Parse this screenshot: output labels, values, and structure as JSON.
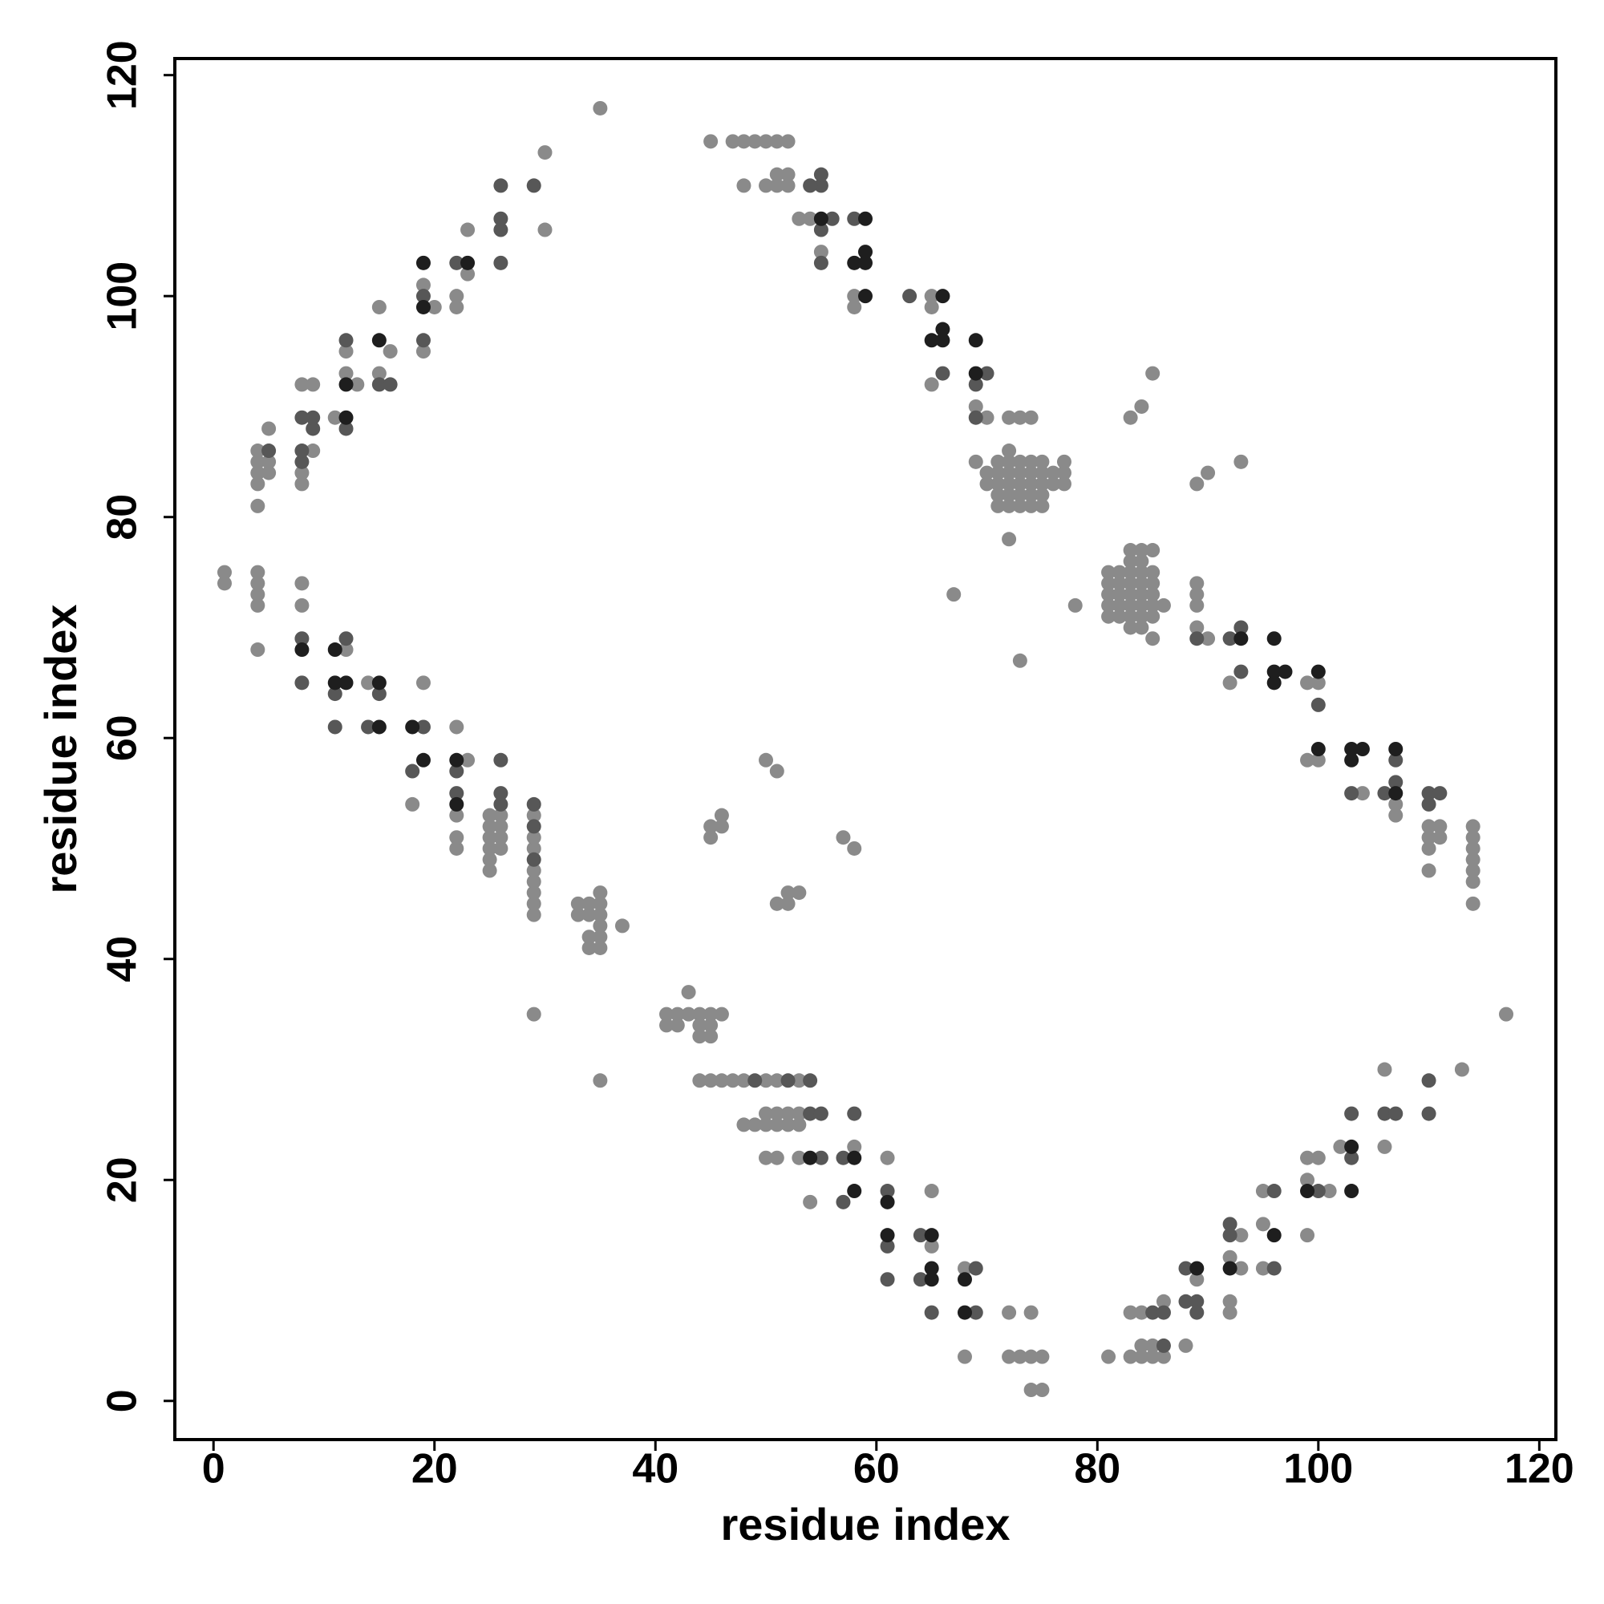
{
  "chart_data": {
    "type": "scatter",
    "x_label": "residue index",
    "y_label": "residue index",
    "xlim": [
      -3.5,
      121.5
    ],
    "ylim": [
      -3.5,
      121.5
    ],
    "xticks": [
      0,
      20,
      40,
      60,
      80,
      100,
      120
    ],
    "yticks": [
      0,
      20,
      40,
      60,
      80,
      100,
      120
    ],
    "grid": false,
    "series": [
      {
        "color": "#8a8a8a",
        "x": [
          44,
          45,
          46,
          47,
          48,
          50,
          51,
          53,
          50,
          51,
          52,
          53,
          48,
          49,
          50,
          51,
          52,
          53,
          50,
          51,
          53,
          54,
          61,
          58,
          65,
          65,
          68,
          68,
          72,
          74,
          72,
          73,
          74,
          75,
          74,
          75,
          81,
          83,
          84,
          85,
          86,
          83,
          84,
          86,
          85,
          84,
          88,
          89,
          92,
          92,
          92,
          93,
          93,
          95,
          95,
          95,
          99,
          99,
          99,
          100,
          101,
          102,
          106,
          113,
          117,
          106,
          41,
          42,
          41,
          42,
          43,
          44,
          45,
          46,
          43,
          44,
          45,
          44,
          45,
          51,
          52,
          53,
          52,
          57,
          58,
          35,
          73,
          78,
          89,
          90,
          93,
          89,
          89,
          89,
          89,
          90,
          92,
          99,
          99,
          100,
          100,
          104,
          107,
          107,
          110,
          110,
          110,
          110,
          111,
          111,
          114,
          114,
          114,
          114,
          114,
          114,
          114,
          81,
          81,
          81,
          81,
          81,
          82,
          82,
          82,
          82,
          82,
          83,
          83,
          83,
          83,
          83,
          84,
          84,
          84,
          84,
          84,
          85,
          85,
          85,
          85,
          85,
          83,
          84,
          85,
          83,
          84,
          83,
          84,
          85,
          86,
          29,
          29,
          29,
          29,
          29,
          29,
          29,
          29,
          26,
          26,
          26,
          26,
          25,
          25,
          25,
          25,
          25,
          25,
          22,
          22,
          22,
          18,
          22,
          23,
          19,
          14,
          12,
          4,
          8,
          8,
          4,
          4,
          4,
          4,
          1,
          1,
          4,
          4,
          4,
          4,
          4,
          8,
          8,
          9,
          5,
          5,
          5,
          11,
          9,
          8,
          13,
          15,
          12,
          12,
          19,
          16,
          20,
          22,
          15,
          22,
          19,
          23,
          30,
          30,
          35,
          23,
          34,
          34,
          35,
          35,
          35,
          35,
          35,
          35,
          37,
          34,
          34,
          33,
          33,
          45,
          45,
          46,
          46,
          51,
          50,
          29,
          67,
          72,
          83,
          84,
          85,
          74,
          73,
          72,
          70,
          69,
          65,
          65,
          58,
          65,
          58,
          55,
          53,
          54,
          48,
          50,
          51,
          52,
          51,
          52,
          45,
          47,
          48,
          49,
          50,
          51,
          52,
          71,
          72,
          73,
          74,
          75,
          71,
          72,
          73,
          74,
          75,
          71,
          72,
          73,
          74,
          75,
          71,
          72,
          73,
          74,
          75,
          71,
          72,
          73,
          74,
          75,
          77,
          77,
          77,
          76,
          76,
          70,
          70,
          69,
          72
        ],
        "values": [
          29,
          29,
          29,
          29,
          29,
          29,
          29,
          29,
          26,
          26,
          26,
          26,
          25,
          25,
          25,
          25,
          25,
          25,
          22,
          22,
          22,
          18,
          22,
          23,
          19,
          14,
          12,
          4,
          8,
          8,
          4,
          4,
          4,
          4,
          1,
          1,
          4,
          4,
          4,
          4,
          4,
          8,
          8,
          9,
          5,
          5,
          5,
          11,
          9,
          8,
          13,
          15,
          12,
          12,
          19,
          16,
          20,
          22,
          15,
          22,
          19,
          23,
          30,
          30,
          35,
          23,
          34,
          34,
          35,
          35,
          35,
          35,
          35,
          35,
          37,
          34,
          34,
          33,
          33,
          45,
          45,
          46,
          46,
          51,
          50,
          29,
          67,
          72,
          83,
          84,
          85,
          74,
          73,
          72,
          70,
          69,
          65,
          65,
          58,
          65,
          58,
          55,
          53,
          54,
          48,
          50,
          51,
          52,
          51,
          52,
          45,
          47,
          48,
          49,
          50,
          51,
          52,
          71,
          72,
          73,
          74,
          75,
          71,
          72,
          73,
          74,
          75,
          71,
          72,
          73,
          74,
          75,
          71,
          72,
          73,
          74,
          75,
          71,
          72,
          73,
          74,
          75,
          77,
          77,
          77,
          76,
          76,
          70,
          70,
          69,
          72,
          44,
          45,
          46,
          47,
          48,
          50,
          51,
          53,
          50,
          51,
          52,
          53,
          48,
          49,
          50,
          51,
          52,
          53,
          50,
          51,
          53,
          54,
          61,
          58,
          65,
          65,
          68,
          68,
          72,
          74,
          72,
          73,
          74,
          75,
          74,
          75,
          81,
          83,
          84,
          85,
          86,
          83,
          84,
          86,
          85,
          84,
          88,
          89,
          92,
          92,
          92,
          93,
          93,
          95,
          95,
          95,
          99,
          99,
          99,
          100,
          101,
          102,
          106,
          113,
          117,
          106,
          41,
          42,
          41,
          42,
          43,
          44,
          45,
          46,
          43,
          44,
          45,
          44,
          45,
          51,
          52,
          53,
          52,
          57,
          58,
          35,
          73,
          78,
          89,
          90,
          93,
          89,
          89,
          89,
          89,
          90,
          92,
          99,
          99,
          100,
          100,
          104,
          107,
          107,
          110,
          110,
          110,
          110,
          111,
          111,
          114,
          114,
          114,
          114,
          114,
          114,
          114,
          81,
          81,
          81,
          81,
          81,
          82,
          82,
          82,
          82,
          82,
          83,
          83,
          83,
          83,
          83,
          84,
          84,
          84,
          84,
          84,
          85,
          85,
          85,
          85,
          85,
          83,
          84,
          85,
          83,
          84,
          83,
          84,
          85,
          86
        ]
      },
      {
        "color": "#575757",
        "x": [
          49,
          52,
          54,
          54,
          55,
          55,
          57,
          58,
          57,
          61,
          61,
          61,
          64,
          64,
          65,
          69,
          69,
          85,
          86,
          86,
          88,
          88,
          89,
          89,
          92,
          92,
          96,
          96,
          100,
          103,
          103,
          106,
          107,
          110,
          110,
          89,
          92,
          93,
          93,
          100,
          103,
          107,
          107,
          110,
          110,
          111,
          106,
          29,
          29,
          29,
          26,
          26,
          22,
          22,
          26,
          18,
          19,
          14,
          11,
          15,
          11,
          8,
          12,
          8,
          8,
          5,
          8,
          12,
          9,
          9,
          8,
          15,
          16,
          12,
          19,
          19,
          22,
          26,
          26,
          26,
          26,
          29,
          69,
          69,
          66,
          70,
          63,
          55,
          58,
          56,
          55,
          54,
          55,
          55
        ],
        "values": [
          29,
          29,
          29,
          26,
          26,
          22,
          22,
          26,
          18,
          19,
          14,
          11,
          15,
          11,
          8,
          12,
          8,
          8,
          5,
          8,
          12,
          9,
          9,
          8,
          15,
          16,
          12,
          19,
          19,
          22,
          26,
          26,
          26,
          26,
          29,
          69,
          69,
          66,
          70,
          63,
          55,
          58,
          56,
          55,
          54,
          55,
          55,
          49,
          52,
          54,
          54,
          55,
          55,
          57,
          58,
          57,
          61,
          61,
          61,
          64,
          64,
          65,
          69,
          69,
          85,
          86,
          86,
          88,
          88,
          89,
          89,
          92,
          92,
          96,
          96,
          100,
          103,
          103,
          106,
          107,
          110,
          110,
          89,
          92,
          93,
          93,
          100,
          103,
          107,
          107,
          110,
          110,
          111,
          106
        ]
      },
      {
        "color": "#1e1e1e",
        "x": [
          54,
          58,
          58,
          61,
          61,
          65,
          65,
          65,
          68,
          68,
          89,
          92,
          96,
          99,
          103,
          103,
          93,
          96,
          96,
          97,
          96,
          100,
          100,
          103,
          103,
          104,
          107,
          107,
          22,
          22,
          19,
          18,
          15,
          15,
          12,
          11,
          11,
          8,
          12,
          12,
          15,
          19,
          19,
          23,
          69,
          69,
          65,
          66,
          66,
          66,
          59,
          58,
          59,
          59,
          59,
          55
        ],
        "values": [
          22,
          22,
          19,
          18,
          15,
          15,
          12,
          11,
          11,
          8,
          12,
          12,
          15,
          19,
          19,
          23,
          69,
          69,
          65,
          66,
          66,
          66,
          59,
          58,
          59,
          59,
          59,
          55,
          54,
          58,
          58,
          61,
          61,
          65,
          65,
          65,
          68,
          68,
          89,
          92,
          96,
          99,
          103,
          103,
          93,
          96,
          96,
          97,
          96,
          100,
          100,
          103,
          103,
          104,
          107,
          107
        ]
      }
    ]
  }
}
